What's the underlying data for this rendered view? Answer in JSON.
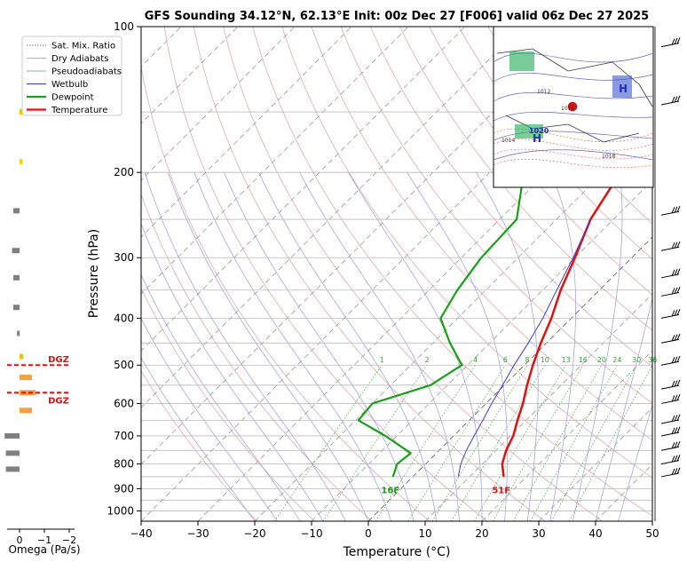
{
  "chart_data": {
    "type": "line",
    "title": "GFS Sounding 34.12°N, 62.13°E Init: 00z Dec 27 [F006] valid 06z Dec 27 2025",
    "xlabel": "Temperature (°C)",
    "ylabel": "Pressure (hPa)",
    "xlim": [
      -40,
      50
    ],
    "ylim": [
      1050,
      100
    ],
    "y_scale": "log",
    "grid": true,
    "x_ticks": [
      -40,
      -30,
      -20,
      -10,
      0,
      10,
      20,
      30,
      40,
      50
    ],
    "y_ticks": [
      100,
      200,
      300,
      400,
      500,
      600,
      700,
      800,
      900,
      1000
    ],
    "legend": {
      "position": "top-left",
      "entries": [
        {
          "label": "Sat. Mix. Ratio",
          "color": "#777777",
          "style": "dotted"
        },
        {
          "label": "Dry Adiabats",
          "color": "#d9a0a0",
          "style": "solid"
        },
        {
          "label": "Pseudoadiabats",
          "color": "#8fb08f",
          "style": "solid"
        },
        {
          "label": "Wetbulb",
          "color": "#3b3bd6",
          "style": "solid"
        },
        {
          "label": "Dewpoint",
          "color": "#18a018",
          "style": "solid"
        },
        {
          "label": "Temperature",
          "color": "#e01010",
          "style": "solid"
        }
      ]
    },
    "series": [
      {
        "name": "Temperature",
        "color": "#e01010",
        "points": [
          [
            850,
            16
          ],
          [
            800,
            13.5
          ],
          [
            750,
            11.8
          ],
          [
            700,
            10.5
          ],
          [
            650,
            8.5
          ],
          [
            600,
            6.5
          ],
          [
            550,
            4.0
          ],
          [
            500,
            1.5
          ],
          [
            450,
            -1.0
          ],
          [
            400,
            -3.5
          ],
          [
            350,
            -6.8
          ],
          [
            300,
            -10.0
          ],
          [
            250,
            -14.0
          ],
          [
            200,
            -17.0
          ],
          [
            150,
            -15.5
          ],
          [
            100,
            -22.0
          ]
        ]
      },
      {
        "name": "Dewpoint",
        "color": "#18a018",
        "points": [
          [
            850,
            -3.5
          ],
          [
            800,
            -5.0
          ],
          [
            760,
            -4.5
          ],
          [
            700,
            -12.0
          ],
          [
            650,
            -19.5
          ],
          [
            600,
            -20.0
          ],
          [
            550,
            -13.0
          ],
          [
            500,
            -11.0
          ],
          [
            450,
            -17.0
          ],
          [
            400,
            -23.0
          ],
          [
            350,
            -25.0
          ],
          [
            300,
            -26.5
          ],
          [
            250,
            -27.0
          ],
          [
            200,
            -34.0
          ],
          [
            150,
            -46.0
          ],
          [
            100,
            -45.0
          ]
        ]
      },
      {
        "name": "Wetbulb",
        "color": "#3b3bd6",
        "points": [
          [
            850,
            8.0
          ],
          [
            800,
            6.2
          ],
          [
            750,
            4.8
          ],
          [
            700,
            3.6
          ],
          [
            650,
            2.4
          ],
          [
            600,
            1.0
          ],
          [
            550,
            -0.3
          ],
          [
            500,
            -1.8
          ],
          [
            450,
            -3.2
          ],
          [
            400,
            -5.0
          ],
          [
            350,
            -7.5
          ],
          [
            300,
            -10.3
          ],
          [
            250,
            -14.0
          ]
        ]
      }
    ],
    "annotations": [
      {
        "text": "16F",
        "color": "#18a018",
        "pressure": 860,
        "temperature": -3.5
      },
      {
        "text": "51F",
        "color": "#e01010",
        "pressure": 860,
        "temperature": 16
      }
    ],
    "mixing_ratio_labels": [
      "1",
      "2",
      "4",
      "6",
      "8",
      "10",
      "13",
      "16",
      "20",
      "24",
      "30",
      "36"
    ],
    "omega_panel": {
      "xlabel": "Omega (Pa/s)",
      "x_ticks": [
        "0",
        "−1",
        "−2"
      ],
      "dgz_label": "DGZ",
      "dgz_color": "#e01010",
      "bars": [
        {
          "pressure": 700,
          "value": 0.6,
          "color": "#808080"
        },
        {
          "pressure": 760,
          "value": 0.55,
          "color": "#808080"
        },
        {
          "pressure": 820,
          "value": 0.55,
          "color": "#808080"
        },
        {
          "pressure": 620,
          "value": -0.5,
          "color": "#f4a040"
        },
        {
          "pressure": 570,
          "value": -0.65,
          "color": "#f4a040"
        },
        {
          "pressure": 530,
          "value": -0.5,
          "color": "#f4a040"
        },
        {
          "pressure": 480,
          "value": -0.15,
          "color": "#f4c000"
        },
        {
          "pressure": 430,
          "value": 0.1,
          "color": "#808080"
        },
        {
          "pressure": 380,
          "value": 0.25,
          "color": "#808080"
        },
        {
          "pressure": 330,
          "value": 0.25,
          "color": "#808080"
        },
        {
          "pressure": 290,
          "value": 0.3,
          "color": "#808080"
        },
        {
          "pressure": 240,
          "value": 0.25,
          "color": "#808080"
        },
        {
          "pressure": 190,
          "value": -0.05,
          "color": "#f4d000"
        },
        {
          "pressure": 150,
          "value": -0.1,
          "color": "#f4c000"
        }
      ],
      "dgz_pressures": [
        500,
        570
      ]
    },
    "inset_map": {
      "labels": [
        "1020",
        "1014",
        "1016",
        "1018",
        "1012"
      ],
      "high_marker": "H"
    }
  }
}
